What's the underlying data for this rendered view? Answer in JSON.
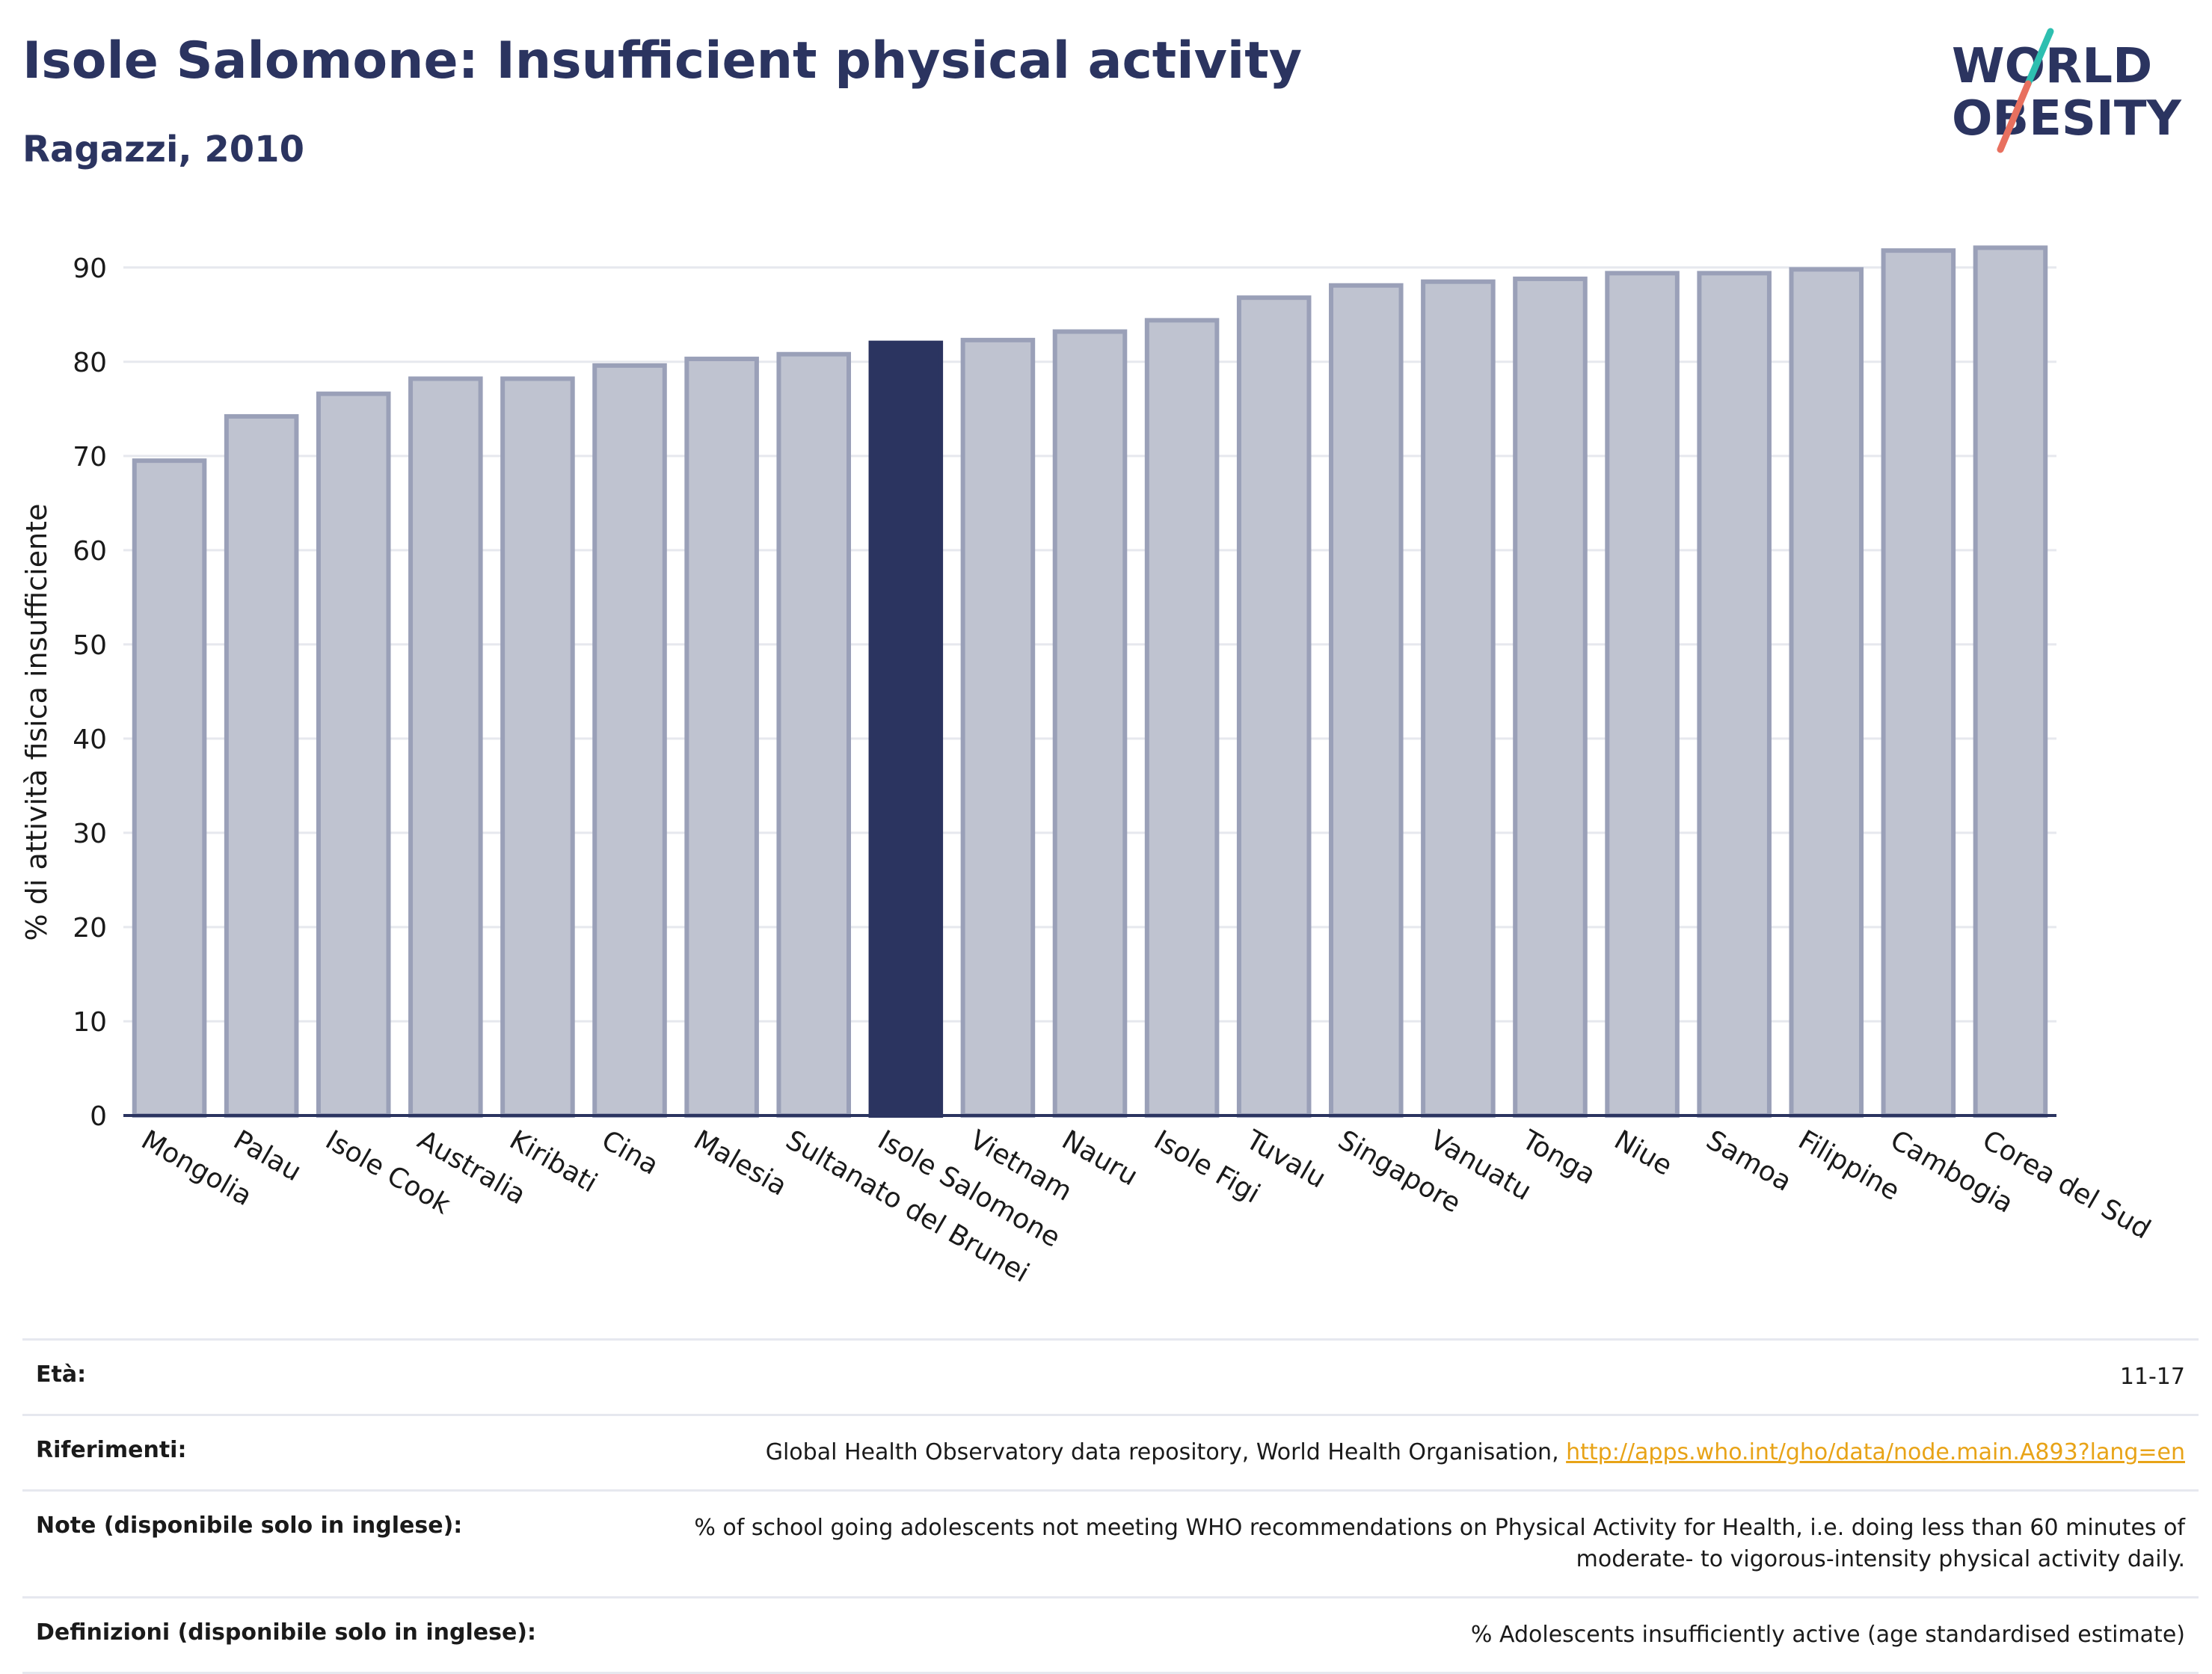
{
  "header": {
    "title": "Isole Salomone: Insufficient physical activity",
    "subtitle": "Ragazzi, 2010"
  },
  "logo": {
    "line1": "WORLD",
    "line2": "OBESITY"
  },
  "colors": {
    "highlight": "#2b3460",
    "bar": "#bfc3d0",
    "bar_border": "#9aa0b8",
    "grid": "#e6e8ee",
    "axis": "#2b3460",
    "link": "#e8a317"
  },
  "chart_data": {
    "type": "bar",
    "ylabel": "% di attività fisica insufficiente",
    "ylim": [
      0,
      93
    ],
    "yticks": [
      0,
      10,
      20,
      30,
      40,
      50,
      60,
      70,
      80,
      90
    ],
    "grid": true,
    "highlight": "Isole Salomone",
    "categories": [
      "Mongolia",
      "Palau",
      "Isole Cook",
      "Australia",
      "Kiribati",
      "Cina",
      "Malesia",
      "Sultanato del Brunei",
      "Isole Salomone",
      "Vietnam",
      "Nauru",
      "Isole Figi",
      "Tuvalu",
      "Singapore",
      "Vanuatu",
      "Tonga",
      "Niue",
      "Samoa",
      "Filippine",
      "Cambogia",
      "Corea del Sud"
    ],
    "values": [
      69.5,
      74.2,
      76.6,
      78.2,
      78.2,
      79.6,
      80.3,
      80.8,
      82.0,
      82.3,
      83.2,
      84.4,
      86.8,
      88.1,
      88.5,
      88.8,
      89.4,
      89.4,
      89.8,
      91.8,
      92.1
    ]
  },
  "footer": {
    "age_label": "Età:",
    "age_value": "11-17",
    "refs_label": "Riferimenti:",
    "refs_text": "Global Health Observatory data repository, World Health Organisation, ",
    "refs_link": "http://apps.who.int/gho/data/node.main.A893?lang=en",
    "notes_label": "Note (disponibile solo in inglese):",
    "notes_value": "% of school going adolescents not meeting WHO recommendations on Physical Activity for Health, i.e. doing less than 60 minutes of moderate- to vigorous-intensity physical activity daily.",
    "defs_label": "Definizioni (disponibile solo in inglese):",
    "defs_value": "% Adolescents insufficiently active (age standardised estimate)"
  }
}
